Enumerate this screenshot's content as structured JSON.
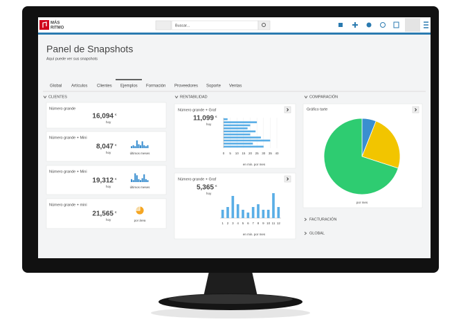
{
  "nav": {
    "logo_top": "MÁS",
    "logo_bottom": "RITMO",
    "search_placeholder": "Buscar..."
  },
  "header": {
    "title": "Panel de Snapshots",
    "subtitle": "Aquí puede ver sus snapshots"
  },
  "tabs": [
    "Global",
    "Artículos",
    "Clientes",
    "Ejemplos",
    "Formación",
    "Proveedores",
    "Soporte",
    "Ventas"
  ],
  "clientes": {
    "heading": "CLIENTES",
    "cards": [
      {
        "title": "Número grande",
        "value": "16,094",
        "currency": "€",
        "period": "hoy"
      },
      {
        "title": "Número grande + Mini",
        "value": "8,047",
        "currency": "€",
        "period": "hoy",
        "mini": {
          "type": "bar",
          "values": [
            2,
            3,
            2,
            8,
            4,
            3,
            7,
            3,
            2,
            3
          ],
          "ylim": [
            0,
            10
          ],
          "color": "#3a8fd0"
        },
        "mini_caption": "últimos meses"
      },
      {
        "title": "Número grande + Mini",
        "value": "19,312",
        "currency": "€",
        "period": "hoy",
        "mini": {
          "type": "bar",
          "values": [
            3,
            2,
            9,
            7,
            3,
            2,
            4,
            8,
            3,
            2
          ],
          "ylim": [
            0,
            10
          ],
          "color": "#3a8fd0"
        },
        "mini_caption": "últimos meses"
      },
      {
        "title": "Número grande + mini",
        "value": "21,565",
        "currency": "€",
        "period": "hoy",
        "mini": {
          "type": "pie",
          "values": [
            75,
            25
          ],
          "colors": [
            "#f5a623",
            "#f7d9a0"
          ]
        },
        "mini_caption": "por área"
      }
    ]
  },
  "rentabilidad": {
    "heading": "RENTABILIDAD",
    "cards": [
      {
        "title": "Número grande + Graf",
        "value": "11,099",
        "currency": "€",
        "period": "hoy",
        "chart_data": {
          "type": "hbar",
          "values": [
            3,
            25,
            20,
            18,
            24,
            20,
            28,
            35,
            22,
            30
          ],
          "color": "#5aaee6",
          "xlim": [
            0,
            40
          ],
          "xticks": [
            0,
            5,
            10,
            15,
            20,
            25,
            30,
            35,
            40
          ],
          "caption": "en min. por mes"
        }
      },
      {
        "title": "Número grande + Graf",
        "value": "5,365",
        "currency": "€",
        "period": "hoy",
        "chart_data": {
          "type": "bar",
          "categories": [
            "1",
            "2",
            "3",
            "4",
            "5",
            "6",
            "7",
            "8",
            "9",
            "10",
            "11",
            "12"
          ],
          "values": [
            3,
            4,
            8,
            5,
            3,
            2,
            4,
            5,
            3,
            3,
            9,
            4
          ],
          "color": "#5aaee6",
          "ylim": [
            0,
            10
          ],
          "caption": "en min. por mes"
        }
      }
    ]
  },
  "comparacion": {
    "heading": "COMPARACIÓN",
    "card": {
      "title": "Gráfico tarte",
      "chart_data": {
        "type": "pie",
        "values": [
          6,
          24,
          70
        ],
        "colors": [
          "#3a8fd0",
          "#f2c500",
          "#2ecc71"
        ],
        "caption": "por mes"
      }
    }
  },
  "collapsed": [
    "FACTURACIÓN",
    "GLOBAL"
  ]
}
